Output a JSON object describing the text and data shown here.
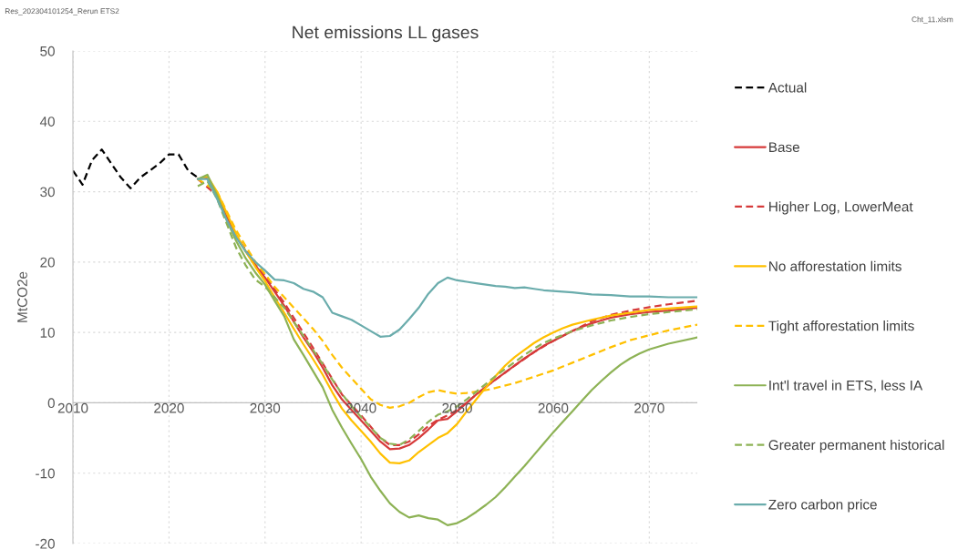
{
  "chart_data": {
    "type": "line",
    "title": "Net emissions LL gases",
    "ylabel": "MtCO2e",
    "annotations": [
      "Res_202304101254_Rerun ETS2",
      "Cht_11.xlsm"
    ],
    "xlim": [
      2010,
      2075
    ],
    "xticks": [
      2010,
      2020,
      2030,
      2040,
      2050,
      2060,
      2070
    ],
    "ylim": [
      -20,
      50
    ],
    "yticks": [
      -20,
      -10,
      0,
      10,
      20,
      30,
      40,
      50
    ],
    "grid": true,
    "legend": "right",
    "marker": "none",
    "series": [
      {
        "name": "Actual",
        "color": "#000000",
        "line_style": "dashed",
        "x": [
          2010,
          2011,
          2012,
          2013,
          2014,
          2015,
          2016,
          2017,
          2018,
          2019,
          2020,
          2021,
          2022,
          2023
        ],
        "values": [
          33,
          31,
          34.5,
          36,
          34,
          32,
          30.5,
          32,
          33,
          34,
          35.3,
          35.3,
          33,
          32
        ]
      },
      {
        "name": "Base",
        "color": "#d63a3a",
        "line_style": "solid",
        "x": [
          2023,
          2024,
          2025,
          2026,
          2027,
          2028,
          2029,
          2030,
          2031,
          2032,
          2033,
          2034,
          2035,
          2036,
          2037,
          2038,
          2039,
          2040,
          2041,
          2042,
          2043,
          2044,
          2045,
          2046,
          2047,
          2048,
          2049,
          2050,
          2051,
          2052,
          2053,
          2054,
          2055,
          2056,
          2057,
          2058,
          2059,
          2060,
          2061,
          2062,
          2063,
          2064,
          2065,
          2066,
          2068,
          2070,
          2072,
          2075
        ],
        "values": [
          31.8,
          32,
          29.5,
          26.5,
          23.8,
          21.5,
          19.5,
          17.8,
          15.8,
          13.8,
          11.5,
          9.3,
          7.3,
          5,
          2.5,
          0.5,
          -1,
          -2.5,
          -4,
          -5.5,
          -6.6,
          -6.5,
          -6,
          -5,
          -3.8,
          -2.5,
          -2.3,
          -1.2,
          0,
          1.2,
          2.3,
          3.3,
          4.3,
          5.3,
          6.3,
          7.2,
          8.1,
          8.8,
          9.5,
          10.2,
          10.8,
          11.3,
          11.7,
          12.1,
          12.6,
          12.9,
          13.1,
          13.5
        ]
      },
      {
        "name": "Higher Log, LowerMeat",
        "color": "#d63a3a",
        "line_style": "dashed",
        "x": [
          2023,
          2025,
          2027,
          2029,
          2030,
          2032,
          2035,
          2038,
          2040,
          2042,
          2043,
          2044,
          2045,
          2046,
          2047,
          2048,
          2049,
          2050,
          2051,
          2052,
          2054,
          2056,
          2058,
          2060,
          2062,
          2064,
          2066,
          2068,
          2070,
          2072,
          2075
        ],
        "values": [
          31.8,
          29.5,
          23.8,
          19.6,
          18,
          14.2,
          7.8,
          1.2,
          -1.8,
          -5,
          -6,
          -6,
          -5.5,
          -4.5,
          -3.3,
          -2.4,
          -1.8,
          -1,
          0,
          1.2,
          3.3,
          5.3,
          7.2,
          8.8,
          10.2,
          11.6,
          12.5,
          13.1,
          13.6,
          14.0,
          14.5
        ]
      },
      {
        "name": "No afforestation limits",
        "color": "#ffc000",
        "line_style": "solid",
        "x": [
          2023,
          2024,
          2025,
          2026,
          2027,
          2028,
          2029,
          2030,
          2031,
          2032,
          2033,
          2034,
          2035,
          2036,
          2037,
          2038,
          2039,
          2040,
          2041,
          2042,
          2043,
          2044,
          2045,
          2046,
          2047,
          2048,
          2049,
          2050,
          2051,
          2052,
          2053,
          2054,
          2055,
          2056,
          2057,
          2058,
          2059,
          2060,
          2061,
          2062,
          2064,
          2066,
          2068,
          2070,
          2072,
          2075
        ],
        "values": [
          31.8,
          32.2,
          30,
          27,
          24,
          21.5,
          19.3,
          17.3,
          15,
          12.8,
          10.5,
          8.3,
          6.2,
          4,
          1.5,
          -0.8,
          -2.5,
          -4,
          -5.5,
          -7.2,
          -8.5,
          -8.6,
          -8.2,
          -7,
          -6,
          -5,
          -4.3,
          -3,
          -1.2,
          0.5,
          2.2,
          3.8,
          5.3,
          6.5,
          7.5,
          8.5,
          9.3,
          10,
          10.6,
          11.1,
          11.8,
          12.4,
          12.8,
          13.2,
          13.4,
          13.7
        ]
      },
      {
        "name": "Tight afforestation limits",
        "color": "#ffc000",
        "line_style": "dashed",
        "x": [
          2023,
          2025,
          2027,
          2029,
          2030,
          2031,
          2032,
          2033,
          2034,
          2035,
          2036,
          2037,
          2038,
          2039,
          2040,
          2041,
          2042,
          2043,
          2044,
          2045,
          2046,
          2047,
          2048,
          2049,
          2050,
          2051,
          2052,
          2053,
          2054,
          2056,
          2058,
          2060,
          2062,
          2064,
          2066,
          2068,
          2070,
          2072,
          2075
        ],
        "values": [
          31.8,
          30,
          24.5,
          20,
          18.3,
          16.5,
          15,
          13.5,
          12,
          10.5,
          8.8,
          6.8,
          5,
          3.5,
          2,
          0.5,
          -0.3,
          -0.7,
          -0.5,
          0,
          0.8,
          1.5,
          1.8,
          1.5,
          1.3,
          1.4,
          1.6,
          1.8,
          2.1,
          2.8,
          3.7,
          4.6,
          5.7,
          6.8,
          7.9,
          8.9,
          9.6,
          10.3,
          11.1
        ]
      },
      {
        "name": "Int'l travel in ETS, less IA",
        "color": "#8db255",
        "line_style": "solid",
        "x": [
          2023,
          2024,
          2025,
          2026,
          2027,
          2028,
          2029,
          2030,
          2031,
          2032,
          2033,
          2034,
          2035,
          2036,
          2037,
          2038,
          2039,
          2040,
          2041,
          2042,
          2043,
          2044,
          2045,
          2046,
          2047,
          2048,
          2049,
          2050,
          2051,
          2052,
          2053,
          2054,
          2055,
          2056,
          2057,
          2058,
          2059,
          2060,
          2061,
          2062,
          2063,
          2064,
          2065,
          2066,
          2067,
          2068,
          2069,
          2070,
          2072,
          2075
        ],
        "values": [
          31.8,
          32.4,
          29.5,
          26,
          23,
          20.5,
          18.5,
          16.8,
          14.5,
          12.3,
          9,
          6.8,
          4.5,
          2.2,
          -1,
          -3.5,
          -5.8,
          -8,
          -10.5,
          -12.5,
          -14.3,
          -15.5,
          -16.3,
          -16,
          -16.4,
          -16.6,
          -17.4,
          -17.1,
          -16.4,
          -15.5,
          -14.5,
          -13.4,
          -12,
          -10.5,
          -9,
          -7.4,
          -5.8,
          -4.2,
          -2.7,
          -1.2,
          0.3,
          1.8,
          3.1,
          4.3,
          5.4,
          6.3,
          7,
          7.6,
          8.4,
          9.3
        ]
      },
      {
        "name": "Greater permanent historical",
        "color": "#8db255",
        "line_style": "dashed",
        "x": [
          2023,
          2024,
          2025,
          2026,
          2027,
          2028,
          2029,
          2030,
          2031,
          2032,
          2033,
          2034,
          2035,
          2036,
          2037,
          2038,
          2039,
          2040,
          2041,
          2042,
          2043,
          2044,
          2045,
          2046,
          2047,
          2048,
          2049,
          2050,
          2051,
          2052,
          2053,
          2054,
          2055,
          2056,
          2057,
          2058,
          2059,
          2060,
          2062,
          2064,
          2066,
          2068,
          2070,
          2072,
          2075
        ],
        "values": [
          30.8,
          31.5,
          29,
          25.5,
          22,
          19.5,
          17.5,
          16.5,
          15,
          13.5,
          11.5,
          9.5,
          7.5,
          5.5,
          3.3,
          1.3,
          -0.5,
          -2,
          -3.5,
          -5,
          -5.8,
          -6,
          -5.2,
          -4,
          -2.7,
          -1.7,
          -1.2,
          -0.5,
          0.5,
          1.6,
          2.7,
          3.8,
          4.8,
          5.8,
          6.8,
          7.7,
          8.5,
          9.1,
          10.2,
          11.0,
          11.7,
          12.2,
          12.6,
          12.9,
          13.3
        ]
      },
      {
        "name": "Zero carbon price",
        "color": "#6aacac",
        "line_style": "solid",
        "x": [
          2023,
          2024,
          2025,
          2026,
          2027,
          2028,
          2029,
          2030,
          2031,
          2032,
          2033,
          2034,
          2035,
          2036,
          2037,
          2038,
          2039,
          2040,
          2041,
          2042,
          2043,
          2044,
          2045,
          2046,
          2047,
          2048,
          2049,
          2050,
          2051,
          2052,
          2053,
          2054,
          2055,
          2056,
          2057,
          2058,
          2059,
          2060,
          2062,
          2064,
          2066,
          2068,
          2070,
          2072,
          2075
        ],
        "values": [
          31.8,
          31.8,
          29,
          26,
          23.5,
          21.5,
          20,
          18.8,
          17.5,
          17.4,
          17,
          16.2,
          15.8,
          15,
          12.8,
          12.3,
          11.8,
          11,
          10.2,
          9.4,
          9.5,
          10.4,
          11.9,
          13.5,
          15.5,
          17,
          17.8,
          17.4,
          17.2,
          17.0,
          16.8,
          16.6,
          16.5,
          16.3,
          16.4,
          16.2,
          16.0,
          15.9,
          15.7,
          15.4,
          15.3,
          15.1,
          15.1,
          15.0,
          15.0
        ]
      }
    ]
  }
}
